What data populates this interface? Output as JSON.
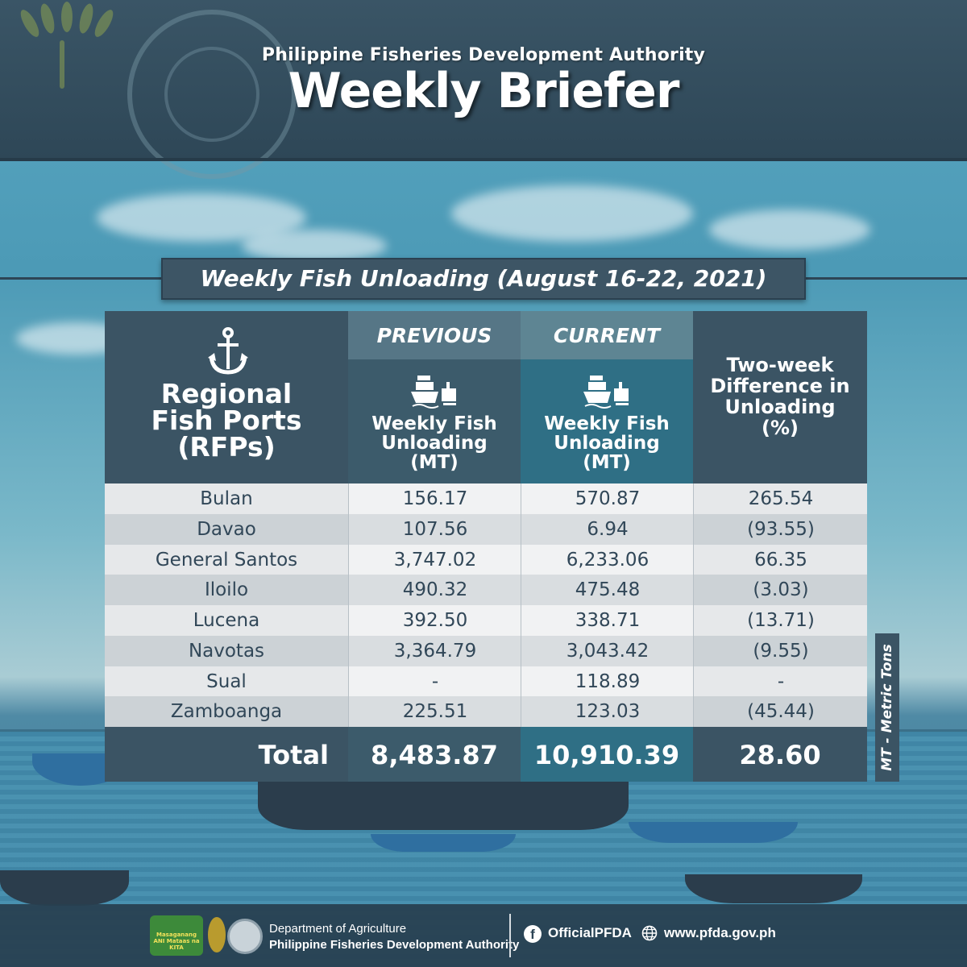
{
  "header": {
    "organization": "Philippine Fisheries Development Authority",
    "title": "Weekly Briefer"
  },
  "section": {
    "title": "Weekly Fish Unloading (August 16-22, 2021)"
  },
  "table": {
    "port_header": "Regional Fish Ports (RFPs)",
    "port_header_lines": [
      "Regional",
      "Fish Ports",
      "(RFPs)"
    ],
    "previous_label": "PREVIOUS",
    "current_label": "CURRENT",
    "unloading_label_lines": [
      "Weekly Fish",
      "Unloading",
      "(MT)"
    ],
    "diff_label_lines": [
      "Two-week",
      "Difference in",
      "Unloading",
      "(%)"
    ],
    "rows": [
      {
        "port": "Bulan",
        "previous": "156.17",
        "current": "570.87",
        "diff": "265.54"
      },
      {
        "port": "Davao",
        "previous": "107.56",
        "current": "6.94",
        "diff": "(93.55)"
      },
      {
        "port": "General Santos",
        "previous": "3,747.02",
        "current": "6,233.06",
        "diff": "66.35"
      },
      {
        "port": "Iloilo",
        "previous": "490.32",
        "current": "475.48",
        "diff": "(3.03)"
      },
      {
        "port": "Lucena",
        "previous": "392.50",
        "current": "338.71",
        "diff": "(13.71)"
      },
      {
        "port": "Navotas",
        "previous": "3,364.79",
        "current": "3,043.42",
        "diff": "(9.55)"
      },
      {
        "port": "Sual",
        "previous": "-",
        "current": "118.89",
        "diff": "-"
      },
      {
        "port": "Zamboanga",
        "previous": "225.51",
        "current": "123.03",
        "diff": "(45.44)"
      }
    ],
    "total": {
      "label": "Total",
      "previous": "8,483.87",
      "current": "10,910.39",
      "diff": "28.60"
    },
    "unit_note": "MT - Metric Tons"
  },
  "footer": {
    "department": "Department of Agriculture",
    "organization": "Philippine Fisheries Development Authority",
    "facebook": "OfficialPFDA",
    "website": "www.pfda.gov.ph",
    "logo_text": "Masaganang ANI Mataas na KITA"
  },
  "colors": {
    "header_bg": "#3a5566",
    "panel_dark": "#3b5464",
    "current_col": "#2f6f85",
    "row_light": "#e6e8ea",
    "row_dark": "#ccd2d6",
    "text_dark": "#314758"
  },
  "icons": [
    "anchor-icon",
    "cargo-ship-icon",
    "facebook-icon",
    "globe-icon",
    "wheat-icon"
  ]
}
